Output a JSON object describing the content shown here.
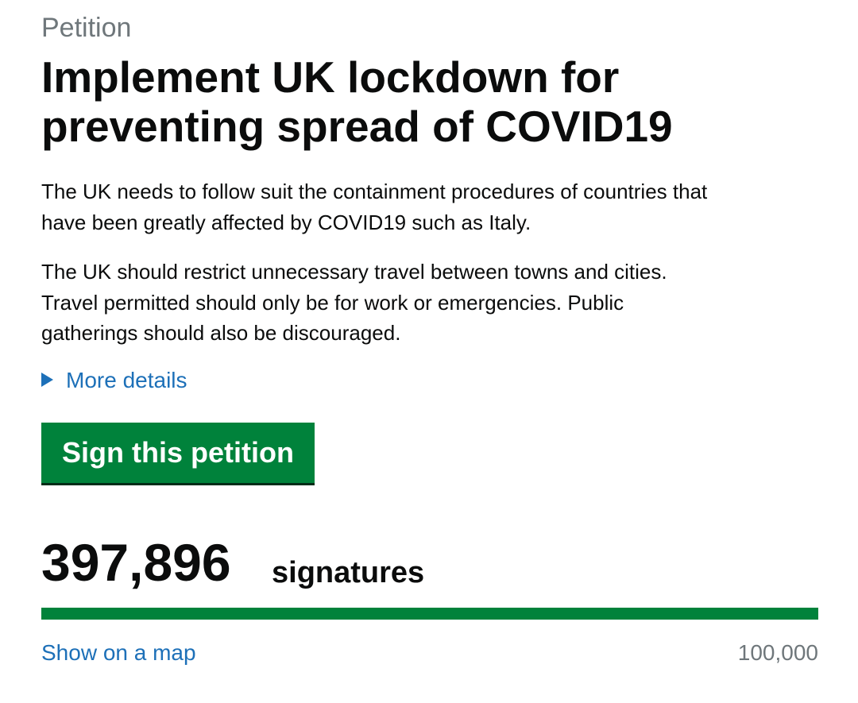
{
  "caption": "Petition",
  "title": "Implement UK lockdown for preventing spread of COVID19",
  "paragraphs": [
    [
      "The UK needs to follow suit the containment procedures of countries that",
      "have been greatly affected by COVID19 such as Italy."
    ],
    [
      "The UK should restrict unnecessary travel between towns and cities.",
      "Travel permitted should only be for work or emergencies. Public",
      "gatherings should also be discouraged."
    ]
  ],
  "details_link": "More details",
  "sign_button": "Sign this petition",
  "signature_count": "397,896",
  "signature_unit": "signatures",
  "map_link": "Show on a map",
  "threshold": "100,000"
}
